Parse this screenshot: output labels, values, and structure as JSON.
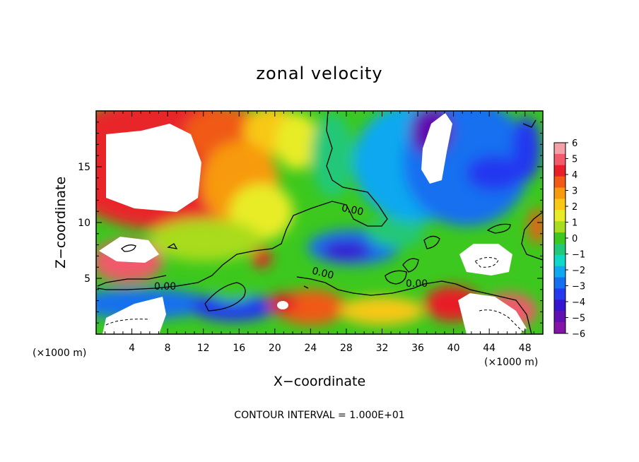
{
  "chart_data": {
    "type": "heatmap",
    "title": "zonal velocity",
    "xlabel": "X−coordinate",
    "ylabel": "Z−coordinate",
    "x_unit": "(×1000 m)",
    "y_unit": "(×1000 m)",
    "x_ticks": [
      4,
      8,
      12,
      16,
      20,
      24,
      28,
      32,
      36,
      40,
      44,
      48
    ],
    "y_ticks": [
      5,
      10,
      15
    ],
    "xlim": [
      0,
      50
    ],
    "ylim": [
      0,
      20
    ],
    "colorbar": {
      "ticks": [
        "6",
        "5",
        "4",
        "3",
        "2",
        "1",
        "0",
        "−1",
        "−2",
        "−3",
        "−4",
        "−5",
        "−6"
      ],
      "range": [
        -6,
        6
      ],
      "colors": [
        "#f4a0a8",
        "#f05a6a",
        "#e81e28",
        "#f05a14",
        "#f89a10",
        "#f8c814",
        "#e8ec28",
        "#a8dc1e",
        "#3cc81e",
        "#20c878",
        "#10d8c8",
        "#10a8f0",
        "#1470f0",
        "#2438f0",
        "#3414d0",
        "#6010b0",
        "#8414a8"
      ]
    },
    "contour_labels": [
      "0.00",
      "0.00",
      "0.00",
      "0.00"
    ],
    "footer": "CONTOUR INTERVAL = 1.000E+01"
  }
}
